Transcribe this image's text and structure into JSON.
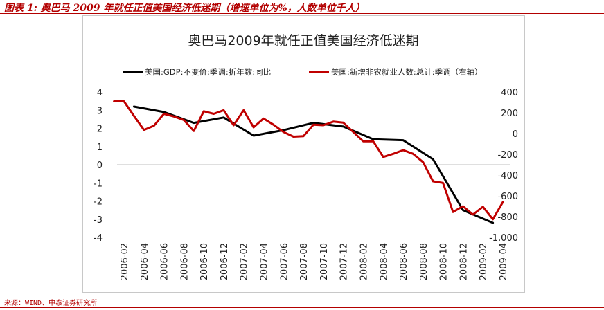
{
  "caption": "图表 1:  奥巴马 2009 年就任正值美国经济低迷期（增速单位为%，人数单位千人）",
  "source": "来源：WIND、中泰证券研究所",
  "colors": {
    "gdp": "#000000",
    "payroll": "#c00000",
    "caption": "#b30000",
    "frame": "#c8c8c8"
  },
  "chart_data": {
    "type": "line",
    "title": "奥巴马2009年就任正值美国经济低迷期",
    "legend_position": "top",
    "grid": false,
    "categories": [
      "2006-02",
      "2006-04",
      "2006-06",
      "2006-08",
      "2006-10",
      "2006-12",
      "2007-02",
      "2007-04",
      "2007-06",
      "2007-08",
      "2007-10",
      "2007-12",
      "2008-02",
      "2008-04",
      "2008-06",
      "2008-08",
      "2008-10",
      "2008-12",
      "2009-02",
      "2009-04"
    ],
    "y_left": {
      "ylim": [
        -4,
        4
      ],
      "ticks": [
        "4",
        "3",
        "2",
        "1",
        "0",
        "-1",
        "-2",
        "-3",
        "-4"
      ]
    },
    "y_right": {
      "ylim": [
        -1000,
        400
      ],
      "ticks": [
        "400",
        "200",
        "0",
        "-200",
        "-400",
        "-600",
        "-800",
        "-1,000"
      ]
    },
    "series": [
      {
        "name": "美国:GDP:不变价:季调:折年数:同比",
        "axis": "left",
        "x": [
          "2006-03",
          "2006-06",
          "2006-09",
          "2006-12",
          "2007-03",
          "2007-06",
          "2007-09",
          "2007-12",
          "2008-03",
          "2008-06",
          "2008-09",
          "2008-12",
          "2009-03"
        ],
        "values": [
          3.2,
          2.9,
          2.3,
          2.6,
          1.6,
          1.9,
          2.3,
          2.1,
          1.4,
          1.35,
          0.3,
          -2.5,
          -3.2
        ]
      },
      {
        "name": "美国:新增非农就业人数:总计:季调（右轴）",
        "axis": "right",
        "x": [
          "2006-01",
          "2006-02",
          "2006-03",
          "2006-04",
          "2006-05",
          "2006-06",
          "2006-07",
          "2006-08",
          "2006-09",
          "2006-10",
          "2006-11",
          "2006-12",
          "2007-01",
          "2007-02",
          "2007-03",
          "2007-04",
          "2007-05",
          "2007-06",
          "2007-07",
          "2007-08",
          "2007-09",
          "2007-10",
          "2007-11",
          "2007-12",
          "2008-01",
          "2008-02",
          "2008-03",
          "2008-04",
          "2008-05",
          "2008-06",
          "2008-07",
          "2008-08",
          "2008-09",
          "2008-10",
          "2008-11",
          "2008-12",
          "2009-01",
          "2009-02",
          "2009-03",
          "2009-04"
        ],
        "values": [
          310,
          310,
          170,
          35,
          75,
          190,
          165,
          130,
          25,
          215,
          190,
          225,
          80,
          225,
          60,
          145,
          85,
          15,
          -30,
          -25,
          85,
          80,
          115,
          105,
          15,
          -75,
          -75,
          -225,
          -195,
          -160,
          -195,
          -275,
          -460,
          -475,
          -755,
          -700,
          -780,
          -705,
          -825,
          -660
        ]
      }
    ]
  }
}
